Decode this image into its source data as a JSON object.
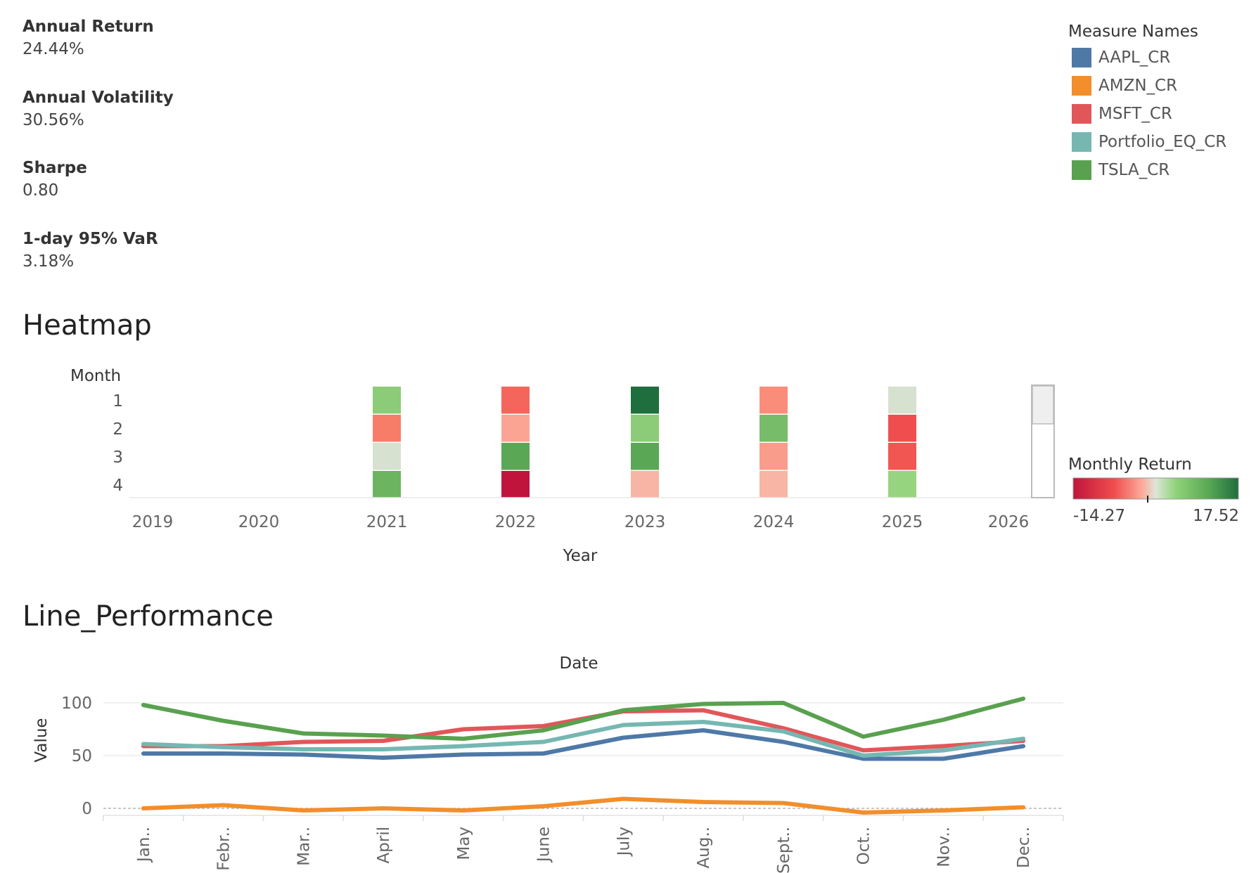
{
  "kpis": [
    {
      "label": "Annual Return",
      "value": "24.44%"
    },
    {
      "label": "Annual Volatility",
      "value": "30.56%"
    },
    {
      "label": "Sharpe",
      "value": "0.80"
    },
    {
      "label": "1-day 95% VaR",
      "value": "3.18%"
    }
  ],
  "legend": {
    "title": "Measure Names",
    "items": [
      {
        "label": "AAPL_CR",
        "color": "#4e79a7"
      },
      {
        "label": "AMZN_CR",
        "color": "#f28e2b"
      },
      {
        "label": "MSFT_CR",
        "color": "#e15759"
      },
      {
        "label": "Portfolio_EQ_CR",
        "color": "#76b7b2"
      },
      {
        "label": "TSLA_CR",
        "color": "#59a14f"
      }
    ]
  },
  "heatmap_title": "Heatmap",
  "line_title": "Line_Performance",
  "chart_data": [
    {
      "type": "heatmap",
      "title": "Heatmap",
      "xlabel": "Year",
      "ylabel": "Month",
      "years": [
        "2019",
        "2020",
        "2021",
        "2022",
        "2023",
        "2024",
        "2025",
        "2026"
      ],
      "months": [
        "1",
        "2",
        "3",
        "4"
      ],
      "color_legend": {
        "title": "Monthly Return",
        "min": "-14.27",
        "max": "17.52",
        "min_value": -14.27,
        "max_value": 17.52
      },
      "cells": [
        {
          "year": "2021",
          "month": "1",
          "value": 8.0
        },
        {
          "year": "2021",
          "month": "2",
          "value": -6.0
        },
        {
          "year": "2021",
          "month": "3",
          "value": 1.0
        },
        {
          "year": "2021",
          "month": "4",
          "value": 11.0
        },
        {
          "year": "2022",
          "month": "1",
          "value": -7.5
        },
        {
          "year": "2022",
          "month": "2",
          "value": -3.5
        },
        {
          "year": "2022",
          "month": "3",
          "value": 13.0
        },
        {
          "year": "2022",
          "month": "4",
          "value": -14.27
        },
        {
          "year": "2023",
          "month": "1",
          "value": 17.52
        },
        {
          "year": "2023",
          "month": "2",
          "value": 8.0
        },
        {
          "year": "2023",
          "month": "3",
          "value": 13.0
        },
        {
          "year": "2023",
          "month": "4",
          "value": -2.5
        },
        {
          "year": "2024",
          "month": "1",
          "value": -5.0
        },
        {
          "year": "2024",
          "month": "2",
          "value": 10.0
        },
        {
          "year": "2024",
          "month": "3",
          "value": -4.0
        },
        {
          "year": "2024",
          "month": "4",
          "value": -2.5
        },
        {
          "year": "2025",
          "month": "1",
          "value": 1.0
        },
        {
          "year": "2025",
          "month": "2",
          "value": -9.0
        },
        {
          "year": "2025",
          "month": "3",
          "value": -8.5
        },
        {
          "year": "2025",
          "month": "4",
          "value": 7.0
        }
      ]
    },
    {
      "type": "line",
      "title": "Line_Performance",
      "xlabel": "Date",
      "ylabel": "Value",
      "categories": [
        "Jan..",
        "Febr..",
        "Mar..",
        "April",
        "May",
        "June",
        "July",
        "Aug..",
        "Sept..",
        "Oct..",
        "Nov..",
        "Dec.."
      ],
      "y_ticks": [
        "0",
        "50",
        "100"
      ],
      "ylim": [
        -10,
        105
      ],
      "series": [
        {
          "name": "AAPL_CR",
          "color": "#4e79a7",
          "values": [
            52,
            52,
            51,
            48,
            51,
            52,
            67,
            74,
            63,
            47,
            47,
            59
          ]
        },
        {
          "name": "AMZN_CR",
          "color": "#f28e2b",
          "values": [
            0,
            3,
            -2,
            0,
            -2,
            2,
            9,
            6,
            5,
            -4,
            -2,
            1
          ]
        },
        {
          "name": "MSFT_CR",
          "color": "#e15759",
          "values": [
            59,
            59,
            63,
            64,
            75,
            78,
            92,
            93,
            76,
            55,
            59,
            64
          ]
        },
        {
          "name": "Portfolio_EQ_CR",
          "color": "#76b7b2",
          "values": [
            61,
            58,
            56,
            56,
            59,
            63,
            79,
            82,
            73,
            50,
            55,
            66
          ]
        },
        {
          "name": "TSLA_CR",
          "color": "#59a14f",
          "values": [
            98,
            83,
            71,
            69,
            66,
            74,
            93,
            99,
            100,
            68,
            84,
            104
          ]
        }
      ]
    }
  ]
}
